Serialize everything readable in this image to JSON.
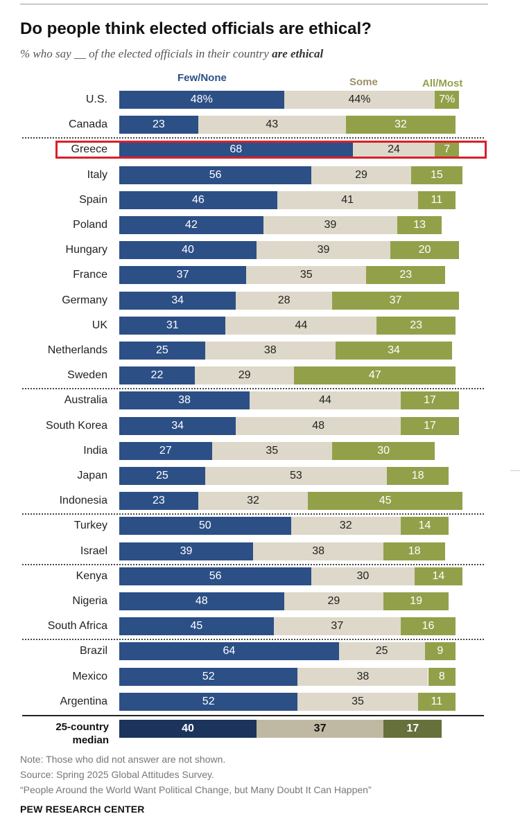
{
  "title": "Do people think elected officials are ethical?",
  "subtitle_prefix": "% who say __ of the elected officials in their country",
  "subtitle_emph": "are ethical",
  "chart_data": {
    "type": "bar",
    "orientation": "horizontal",
    "stacked": true,
    "title": "Do people think elected officials are ethical?",
    "categories": [
      "U.S.",
      "Canada",
      "Greece",
      "Italy",
      "Spain",
      "Poland",
      "Hungary",
      "France",
      "Germany",
      "UK",
      "Netherlands",
      "Sweden",
      "Australia",
      "South Korea",
      "India",
      "Japan",
      "Indonesia",
      "Turkey",
      "Israel",
      "Kenya",
      "Nigeria",
      "South Africa",
      "Brazil",
      "Mexico",
      "Argentina"
    ],
    "series": [
      {
        "name": "Few/None",
        "values": [
          48,
          23,
          68,
          56,
          46,
          42,
          40,
          37,
          34,
          31,
          25,
          22,
          38,
          34,
          27,
          25,
          23,
          50,
          39,
          56,
          48,
          45,
          64,
          52,
          52
        ]
      },
      {
        "name": "Some",
        "values": [
          44,
          43,
          24,
          29,
          41,
          39,
          39,
          35,
          28,
          44,
          38,
          29,
          44,
          48,
          35,
          53,
          32,
          32,
          38,
          30,
          29,
          37,
          25,
          38,
          35
        ]
      },
      {
        "name": "All/Most",
        "values": [
          7,
          32,
          7,
          15,
          11,
          13,
          20,
          23,
          37,
          23,
          34,
          47,
          17,
          17,
          30,
          18,
          45,
          14,
          18,
          14,
          19,
          16,
          9,
          8,
          11
        ]
      }
    ],
    "value_labels": [
      [
        "48%",
        "44%",
        "7%"
      ],
      [
        "23",
        "43",
        "32"
      ],
      [
        "68",
        "24",
        "7"
      ],
      [
        "56",
        "29",
        "15"
      ],
      [
        "46",
        "41",
        "11"
      ],
      [
        "42",
        "39",
        "13"
      ],
      [
        "40",
        "39",
        "20"
      ],
      [
        "37",
        "35",
        "23"
      ],
      [
        "34",
        "28",
        "37"
      ],
      [
        "31",
        "44",
        "23"
      ],
      [
        "25",
        "38",
        "34"
      ],
      [
        "22",
        "29",
        "47"
      ],
      [
        "38",
        "44",
        "17"
      ],
      [
        "34",
        "48",
        "17"
      ],
      [
        "27",
        "35",
        "30"
      ],
      [
        "25",
        "53",
        "18"
      ],
      [
        "23",
        "32",
        "45"
      ],
      [
        "50",
        "32",
        "14"
      ],
      [
        "39",
        "38",
        "18"
      ],
      [
        "56",
        "30",
        "14"
      ],
      [
        "48",
        "29",
        "19"
      ],
      [
        "45",
        "37",
        "16"
      ],
      [
        "64",
        "25",
        "9"
      ],
      [
        "52",
        "38",
        "8"
      ],
      [
        "52",
        "35",
        "11"
      ]
    ],
    "median": {
      "label_line1": "25-country",
      "label_line2": "median",
      "values": [
        40,
        37,
        17
      ]
    },
    "highlighted_category": "Greece",
    "colors": [
      "#2c4f86",
      "#ddd8c9",
      "#93a04a"
    ],
    "median_colors": [
      "#1c345c",
      "#bfb9a3",
      "#66703a"
    ],
    "xlim": [
      0,
      100
    ]
  },
  "notes": [
    "Note: Those who did not answer are not shown.",
    "Source: Spring 2025 Global Attitudes Survey.",
    "“People Around the World Want Political Change, but Many Doubt It Can Happen”"
  ],
  "brand": "PEW RESEARCH CENTER"
}
